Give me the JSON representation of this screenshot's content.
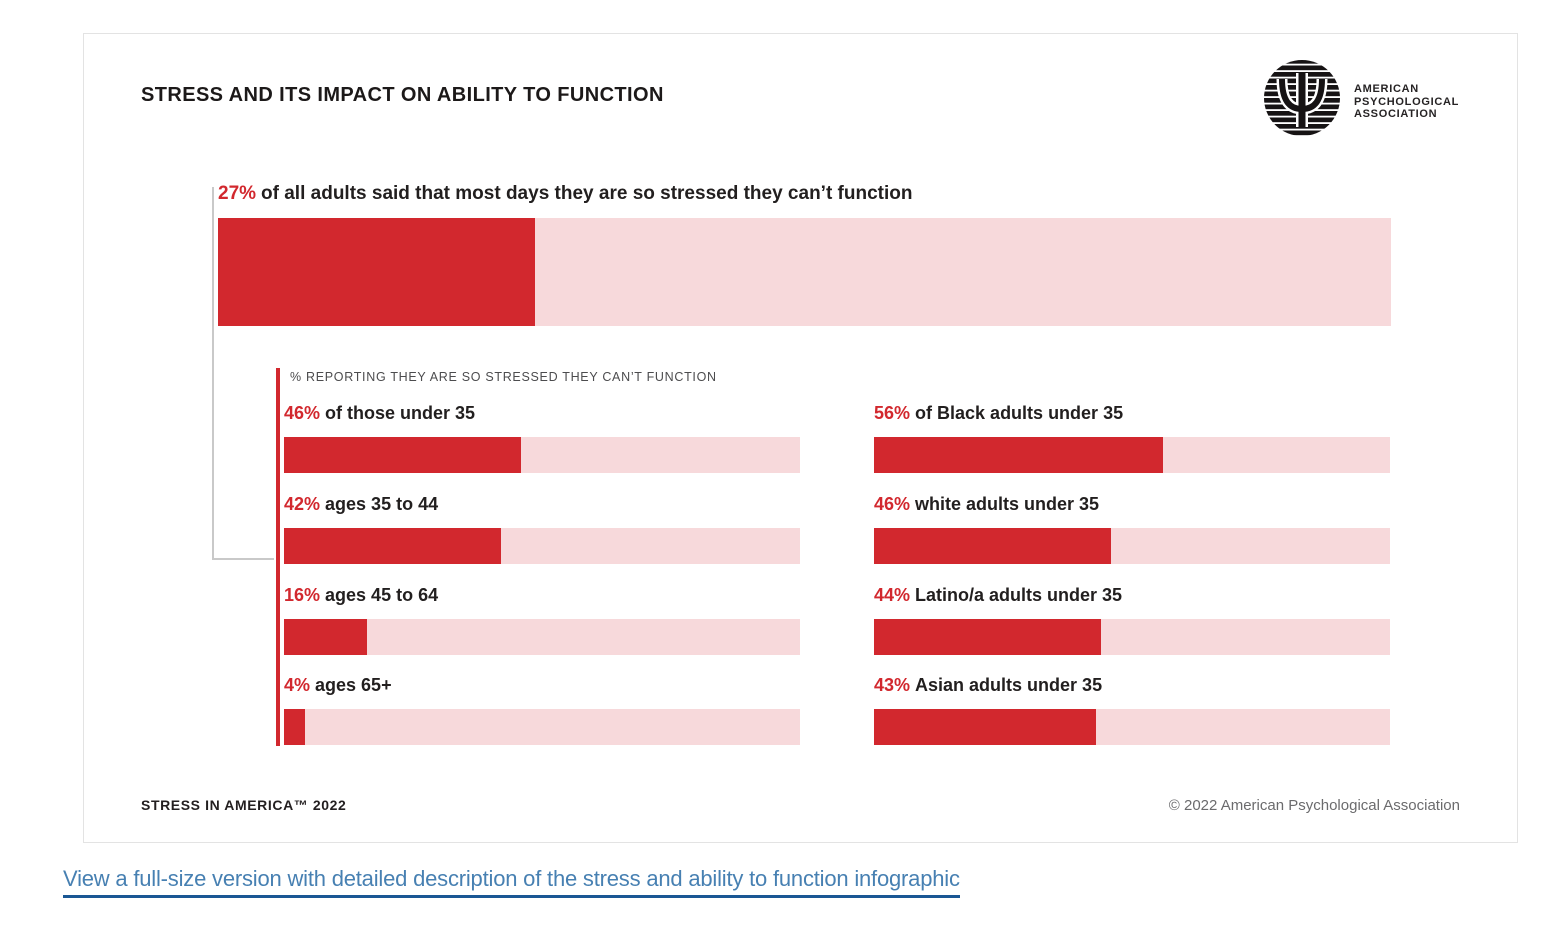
{
  "colors": {
    "bar_red": "#d2282e",
    "bar_pink": "#f7d9db",
    "text_dark": "#221f1f",
    "subheader_gray": "#4c4c4e",
    "footer_gray": "#6b6b6d",
    "link_blue": "#4780b2",
    "link_underline": "#1a5794",
    "connector_gray": "#c9c9c9"
  },
  "header": {
    "title": "STRESS AND ITS IMPACT ON ABILITY TO FUNCTION",
    "logo_lines": [
      "AMERICAN",
      "PSYCHOLOGICAL",
      "ASSOCIATION"
    ]
  },
  "chart_data": {
    "type": "bar",
    "title": "STRESS AND ITS IMPACT ON ABILITY TO FUNCTION",
    "units": "percent",
    "axis_max": 100,
    "overall": {
      "pct": "27%",
      "value": 27,
      "text": "of all adults said that most days they are so stressed they can’t function"
    },
    "subchart_title": "% REPORTING THEY ARE SO STRESSED THEY CAN’T FUNCTION",
    "age_groups": [
      {
        "pct": "46%",
        "value": 46,
        "text": "of those under 35"
      },
      {
        "pct": "42%",
        "value": 42,
        "text": "ages 35 to 44"
      },
      {
        "pct": "16%",
        "value": 16,
        "text": "ages 45 to 64"
      },
      {
        "pct": "4%",
        "value": 4,
        "text": "ages 65+"
      }
    ],
    "under35_groups": [
      {
        "pct": "56%",
        "value": 56,
        "text": "of Black adults under 35"
      },
      {
        "pct": "46%",
        "value": 46,
        "text": "white adults under 35"
      },
      {
        "pct": "44%",
        "value": 44,
        "text": "Latino/a adults under 35"
      },
      {
        "pct": "43%",
        "value": 43,
        "text": "Asian adults under 35"
      }
    ]
  },
  "footer": {
    "left": "STRESS IN AMERICA™ 2022",
    "right": "© 2022 American Psychological Association"
  },
  "link": {
    "text": "View a full-size version with detailed description of the stress and ability to function infographic"
  }
}
